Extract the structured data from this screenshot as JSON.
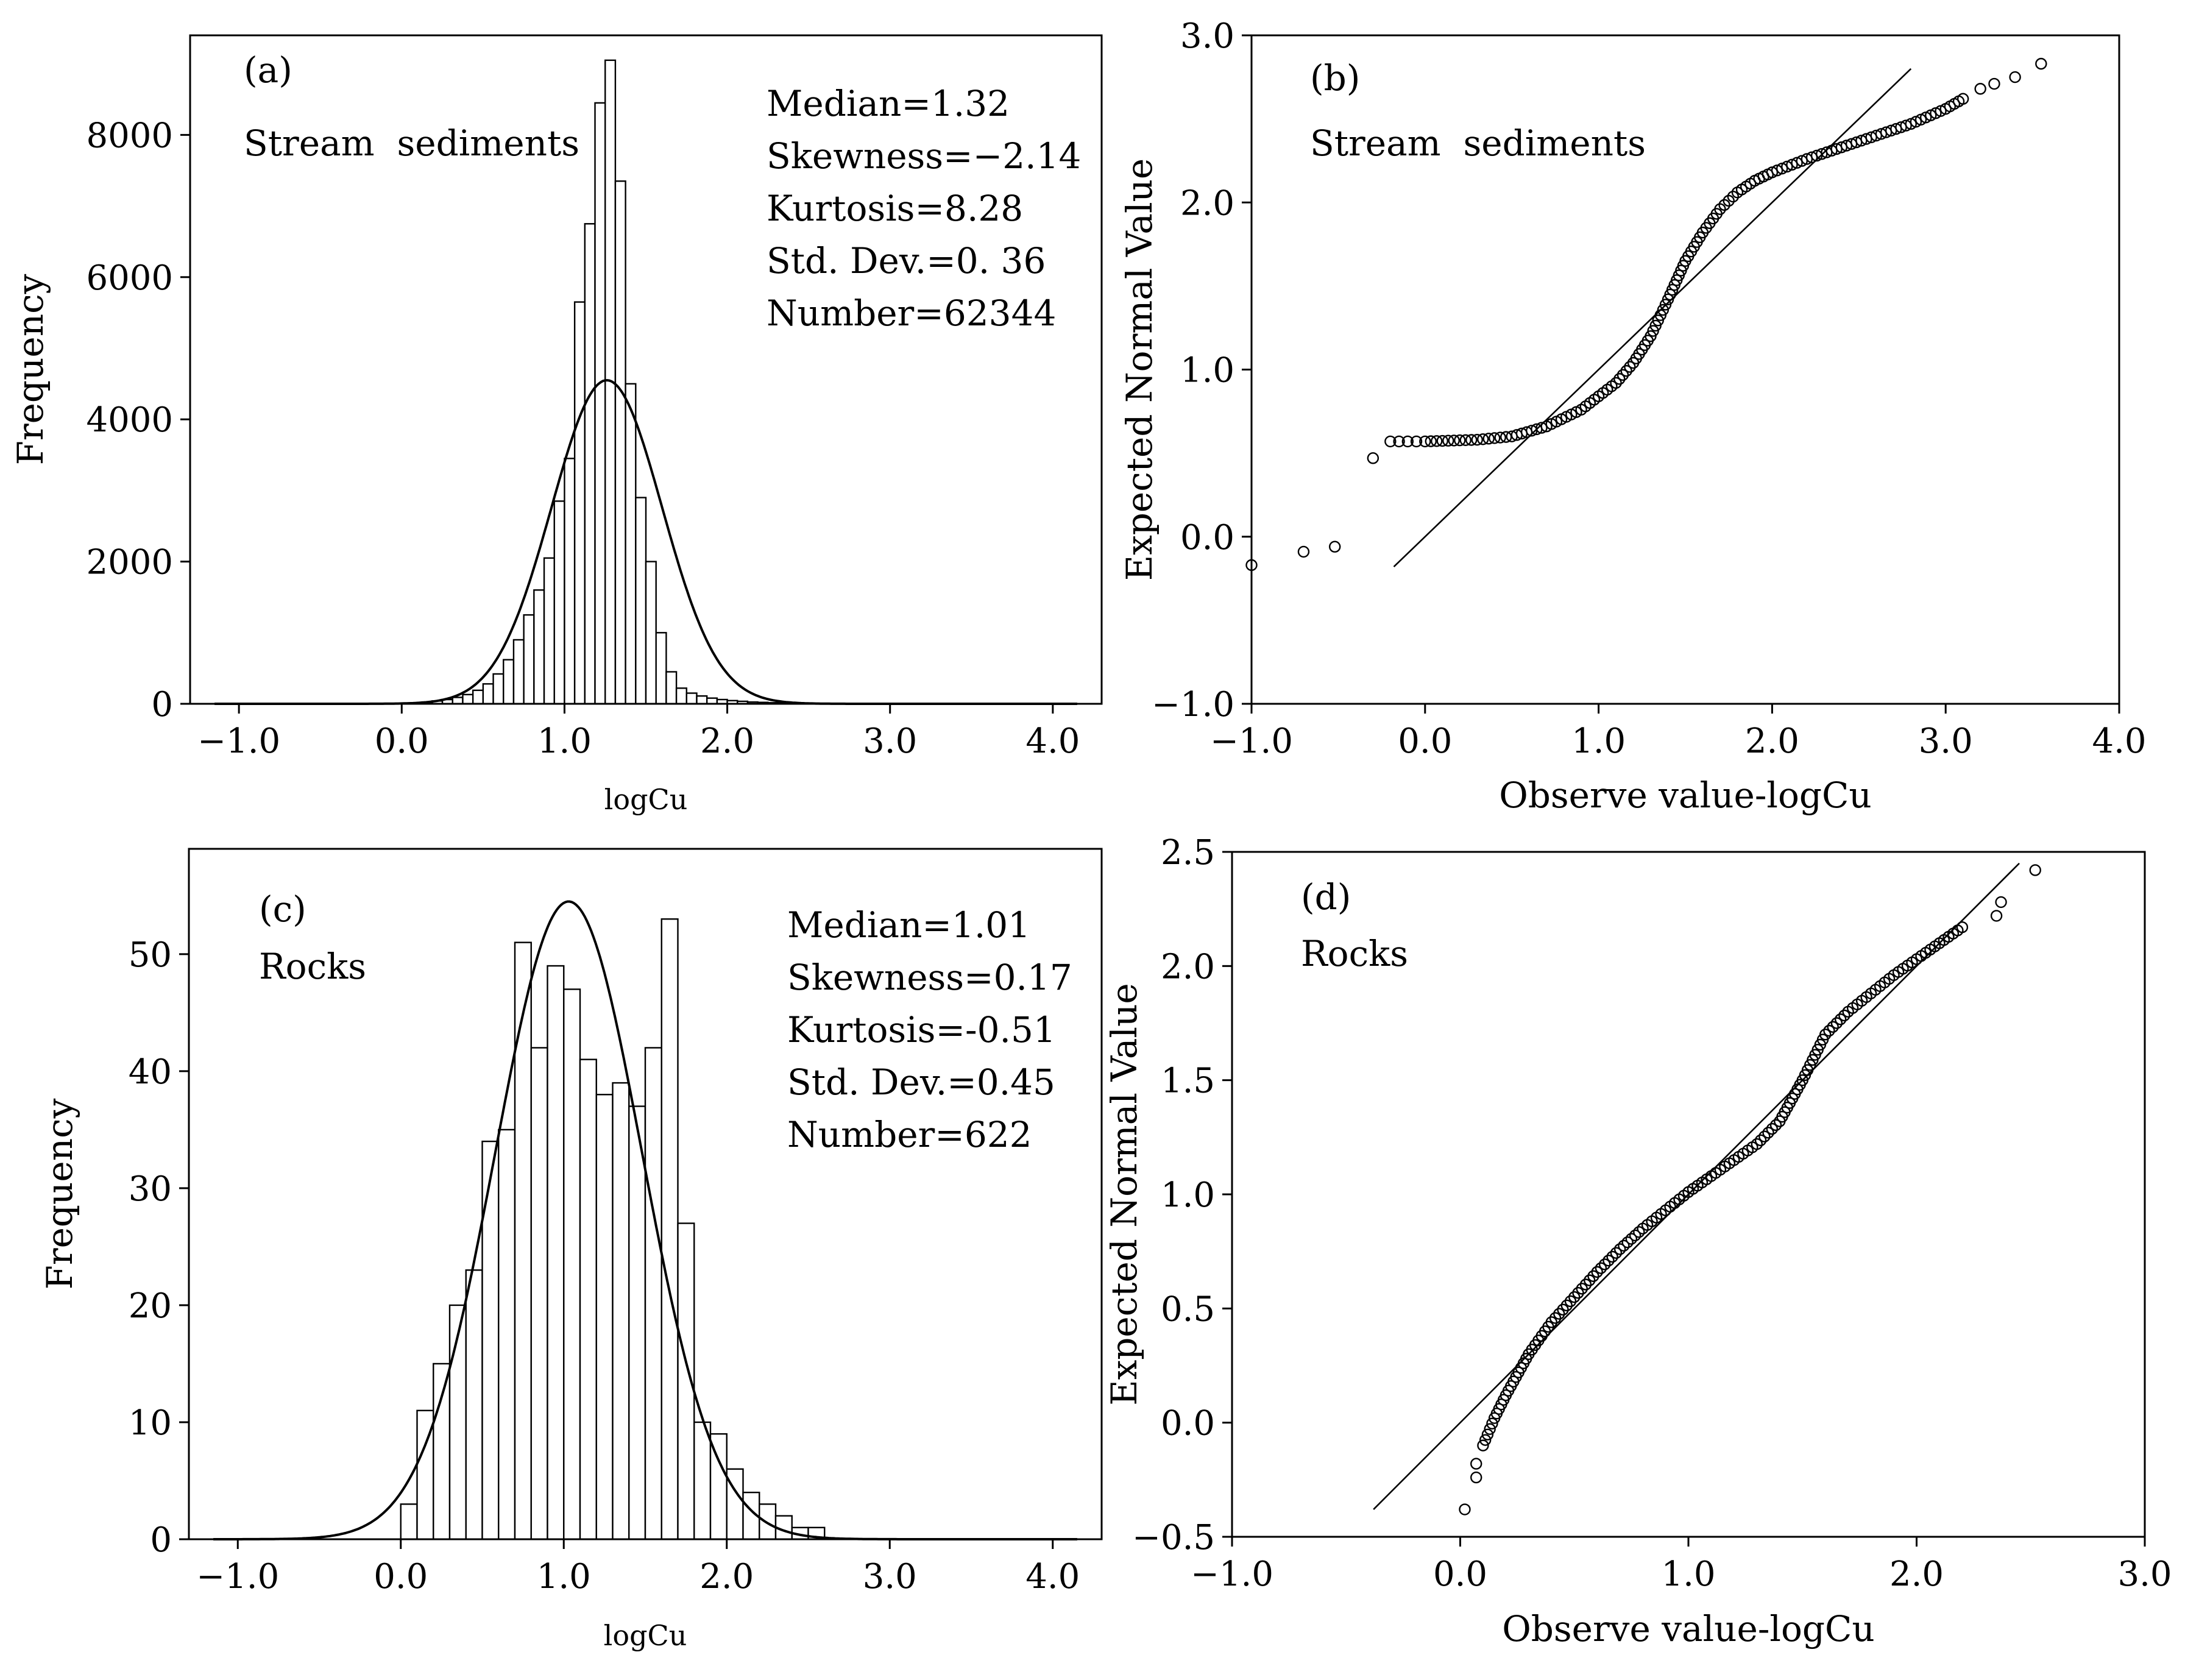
{
  "chart_data": [
    {
      "id": "a",
      "type": "bar",
      "panel_label": "(a)",
      "sample_label": "Stream  sediments",
      "xlabel": "logCu",
      "ylabel": "Frequency",
      "xlim": [
        -1.3,
        4.3
      ],
      "ylim": [
        0,
        9400
      ],
      "xticks": [
        -1.0,
        0.0,
        1.0,
        2.0,
        3.0,
        4.0
      ],
      "xtick_labels": [
        "−1.0",
        "0.0",
        "1.0",
        "2.0",
        "3.0",
        "4.0"
      ],
      "yticks": [
        0,
        2000,
        4000,
        6000,
        8000
      ],
      "ytick_labels": [
        "0",
        "2000",
        "4000",
        "6000",
        "8000"
      ],
      "stats": [
        "Median=1.32",
        "Skewness=−2.14",
        "Kurtosis=8.28",
        "Std. Dev.=0. 36",
        "Number=62344"
      ],
      "bin_width": 0.0625,
      "bin_start": 0.0,
      "values": [
        10,
        15,
        25,
        40,
        60,
        90,
        130,
        190,
        280,
        420,
        620,
        900,
        1250,
        1600,
        2050,
        2850,
        3450,
        5650,
        6750,
        8450,
        9050,
        7350,
        4500,
        2900,
        2000,
        1000,
        450,
        220,
        150,
        110,
        80,
        60,
        45,
        35,
        25,
        20,
        15,
        10,
        8,
        6,
        5,
        4,
        3,
        3,
        2,
        2,
        2,
        2,
        1,
        1
      ],
      "normal_fit": {
        "mean": 1.26,
        "sd": 0.34,
        "peak": 4550
      }
    },
    {
      "id": "b",
      "type": "scatter",
      "panel_label": "(b)",
      "sample_label": "Stream  sediments",
      "xlabel": "Observe value-logCu",
      "ylabel": "Expected Normal Value",
      "xlim": [
        -1.0,
        4.0
      ],
      "ylim": [
        -1.0,
        3.0
      ],
      "xticks": [
        -1.0,
        0.0,
        1.0,
        2.0,
        3.0,
        4.0
      ],
      "xtick_labels": [
        "−1.0",
        "0.0",
        "1.0",
        "2.0",
        "3.0",
        "4.0"
      ],
      "yticks": [
        -1.0,
        0.0,
        1.0,
        2.0,
        3.0
      ],
      "ytick_labels": [
        "−1.0",
        "0.0",
        "1.0",
        "2.0",
        "3.0"
      ],
      "reference_line": [
        [
          -0.18,
          -0.18
        ],
        [
          2.8,
          2.8
        ]
      ],
      "points": {
        "isolated": [
          [
            -1.0,
            -0.17
          ],
          [
            -0.7,
            -0.09
          ],
          [
            -0.52,
            -0.06
          ],
          [
            -0.3,
            0.47
          ],
          [
            -0.2,
            0.57
          ],
          [
            -0.15,
            0.57
          ],
          [
            -0.1,
            0.57
          ],
          [
            -0.05,
            0.57
          ],
          [
            3.2,
            2.68
          ],
          [
            3.28,
            2.71
          ],
          [
            3.4,
            2.75
          ],
          [
            3.55,
            2.83
          ]
        ],
        "dense_curve": [
          [
            0.0,
            0.57
          ],
          [
            0.3,
            0.58
          ],
          [
            0.5,
            0.6
          ],
          [
            0.7,
            0.66
          ],
          [
            0.9,
            0.76
          ],
          [
            1.1,
            0.92
          ],
          [
            1.2,
            1.04
          ],
          [
            1.3,
            1.2
          ],
          [
            1.4,
            1.42
          ],
          [
            1.5,
            1.65
          ],
          [
            1.6,
            1.82
          ],
          [
            1.7,
            1.96
          ],
          [
            1.8,
            2.06
          ],
          [
            1.9,
            2.13
          ],
          [
            2.0,
            2.18
          ],
          [
            2.2,
            2.26
          ],
          [
            2.4,
            2.33
          ],
          [
            2.6,
            2.4
          ],
          [
            2.8,
            2.47
          ],
          [
            3.0,
            2.56
          ],
          [
            3.1,
            2.62
          ]
        ]
      }
    },
    {
      "id": "c",
      "type": "bar",
      "panel_label": "(c)",
      "sample_label": "Rocks",
      "xlabel": "logCu",
      "ylabel": "Frequency",
      "xlim": [
        -1.3,
        4.3
      ],
      "ylim": [
        0,
        59
      ],
      "xticks": [
        -1.0,
        0.0,
        1.0,
        2.0,
        3.0,
        4.0
      ],
      "xtick_labels": [
        "−1.0",
        "0.0",
        "1.0",
        "2.0",
        "3.0",
        "4.0"
      ],
      "yticks": [
        0,
        10,
        20,
        30,
        40,
        50
      ],
      "ytick_labels": [
        "0",
        "10",
        "20",
        "30",
        "40",
        "50"
      ],
      "stats": [
        "Median=1.01",
        "Skewness=0.17",
        "Kurtosis=-0.51",
        "Std. Dev.=0.45",
        "Number=622"
      ],
      "bin_width": 0.1,
      "bin_start": 0.0,
      "values": [
        3,
        11,
        15,
        20,
        23,
        34,
        35,
        51,
        42,
        49,
        47,
        41,
        38,
        39,
        37,
        42,
        53,
        27,
        10,
        9,
        6,
        4,
        3,
        2,
        1,
        1
      ],
      "normal_fit": {
        "mean": 1.03,
        "sd": 0.45,
        "peak": 54.5
      }
    },
    {
      "id": "d",
      "type": "scatter",
      "panel_label": "(d)",
      "sample_label": "Rocks",
      "xlabel": "Observe value-logCu",
      "ylabel": "Expected Normal Value",
      "xlim": [
        -1.0,
        3.0
      ],
      "ylim": [
        -0.5,
        2.5
      ],
      "xticks": [
        -1.0,
        0.0,
        1.0,
        2.0,
        3.0
      ],
      "xtick_labels": [
        "−1.0",
        "0.0",
        "1.0",
        "2.0",
        "3.0"
      ],
      "yticks": [
        -0.5,
        0.0,
        0.5,
        1.0,
        1.5,
        2.0,
        2.5
      ],
      "ytick_labels": [
        "−0.5",
        "0.0",
        "0.5",
        "1.0",
        "1.5",
        "2.0",
        "2.5"
      ],
      "reference_line": [
        [
          -0.38,
          -0.38
        ],
        [
          2.45,
          2.45
        ]
      ],
      "points": {
        "isolated": [
          [
            0.02,
            -0.38
          ],
          [
            0.07,
            -0.24
          ],
          [
            0.07,
            -0.18
          ],
          [
            2.35,
            2.22
          ],
          [
            2.37,
            2.28
          ],
          [
            2.52,
            2.42
          ]
        ],
        "dense_curve": [
          [
            0.1,
            -0.1
          ],
          [
            0.15,
            0.02
          ],
          [
            0.2,
            0.12
          ],
          [
            0.3,
            0.3
          ],
          [
            0.4,
            0.44
          ],
          [
            0.5,
            0.55
          ],
          [
            0.6,
            0.66
          ],
          [
            0.7,
            0.76
          ],
          [
            0.8,
            0.85
          ],
          [
            0.9,
            0.93
          ],
          [
            1.0,
            1.01
          ],
          [
            1.1,
            1.08
          ],
          [
            1.2,
            1.15
          ],
          [
            1.3,
            1.22
          ],
          [
            1.4,
            1.32
          ],
          [
            1.5,
            1.5
          ],
          [
            1.6,
            1.7
          ],
          [
            1.7,
            1.8
          ],
          [
            1.8,
            1.88
          ],
          [
            1.9,
            1.96
          ],
          [
            2.0,
            2.03
          ],
          [
            2.1,
            2.1
          ],
          [
            2.2,
            2.17
          ]
        ]
      }
    }
  ]
}
